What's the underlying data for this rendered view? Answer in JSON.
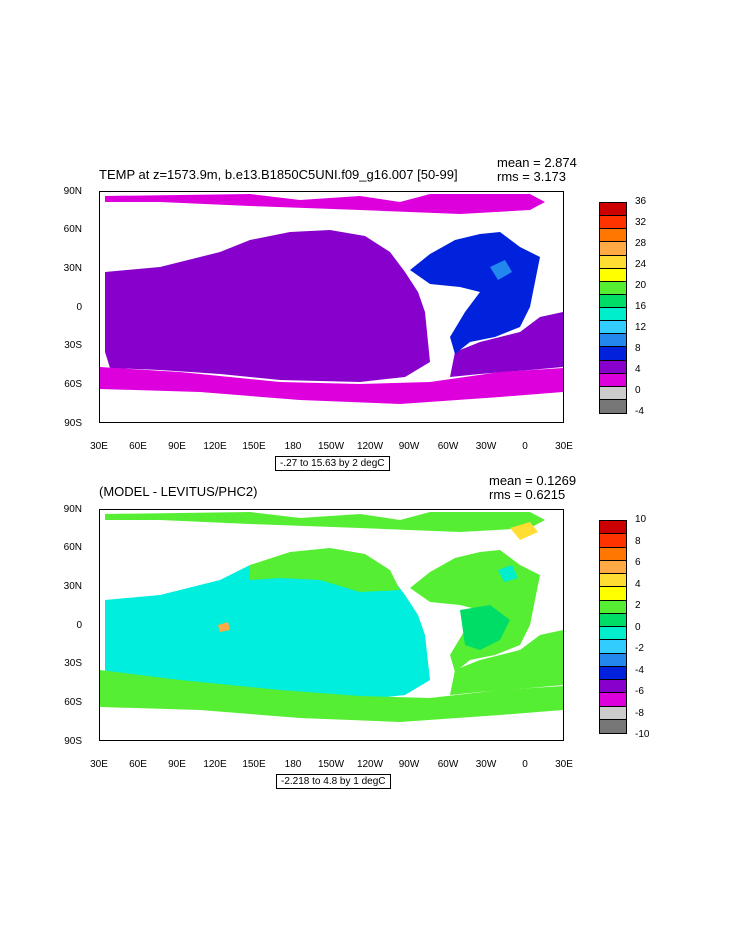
{
  "panels": [
    {
      "title": "TEMP at z=1573.9m, b.e13.B1850C5UNI.f09_g16.007 [50-99]",
      "mean": "mean = 2.874",
      "rms": "rms = 3.173",
      "range_label": "-.27 to 15.63 by 2 degC",
      "lat_labels": [
        "90N",
        "60N",
        "30N",
        "0",
        "30S",
        "60S",
        "90S"
      ],
      "lon_labels": [
        "30E",
        "60E",
        "90E",
        "120E",
        "150E",
        "180",
        "150W",
        "120W",
        "90W",
        "60W",
        "30W",
        "0",
        "30E"
      ],
      "colorbar_labels": [
        "36",
        "32",
        "28",
        "24",
        "20",
        "16",
        "12",
        "8",
        "4",
        "0",
        "-4"
      ],
      "colorbar_colors": [
        "#cc0000",
        "#ff3300",
        "#ff7700",
        "#ffaa44",
        "#ffdd33",
        "#ffff00",
        "#55ee33",
        "#00dd66",
        "#00eecc",
        "#33ccff",
        "#2288ee",
        "#0022dd",
        "#8800cc",
        "#dd00dd",
        "#cccccc",
        "#777777"
      ],
      "fields": {
        "ocean": "#8800cc",
        "south": "#dd00dd",
        "atlantic": "#0022dd",
        "warm": "#2288ee",
        "arctic": "#dd00dd"
      }
    },
    {
      "title": "(MODEL - LEVITUS/PHC2)",
      "mean": "mean = 0.1269",
      "rms": "rms = 0.6215",
      "range_label": "-2.218 to 4.8 by 1 degC",
      "lat_labels": [
        "90N",
        "60N",
        "30N",
        "0",
        "30S",
        "60S",
        "90S"
      ],
      "lon_labels": [
        "30E",
        "60E",
        "90E",
        "120E",
        "150E",
        "180",
        "150W",
        "120W",
        "90W",
        "60W",
        "30W",
        "0",
        "30E"
      ],
      "colorbar_labels": [
        "10",
        "8",
        "6",
        "4",
        "2",
        "0",
        "-2",
        "-4",
        "-6",
        "-8",
        "-10"
      ],
      "colorbar_colors": [
        "#cc0000",
        "#ff3300",
        "#ff7700",
        "#ffaa44",
        "#ffdd33",
        "#ffff00",
        "#55ee33",
        "#00dd66",
        "#00eecc",
        "#33ccff",
        "#2288ee",
        "#0022dd",
        "#8800cc",
        "#dd00dd",
        "#cccccc",
        "#777777"
      ],
      "fields": {
        "ocean": "#00eedd",
        "south": "#55ee33",
        "atlantic": "#55ee33",
        "warm": "#ffdd33",
        "arctic": "#55ee33"
      }
    }
  ]
}
